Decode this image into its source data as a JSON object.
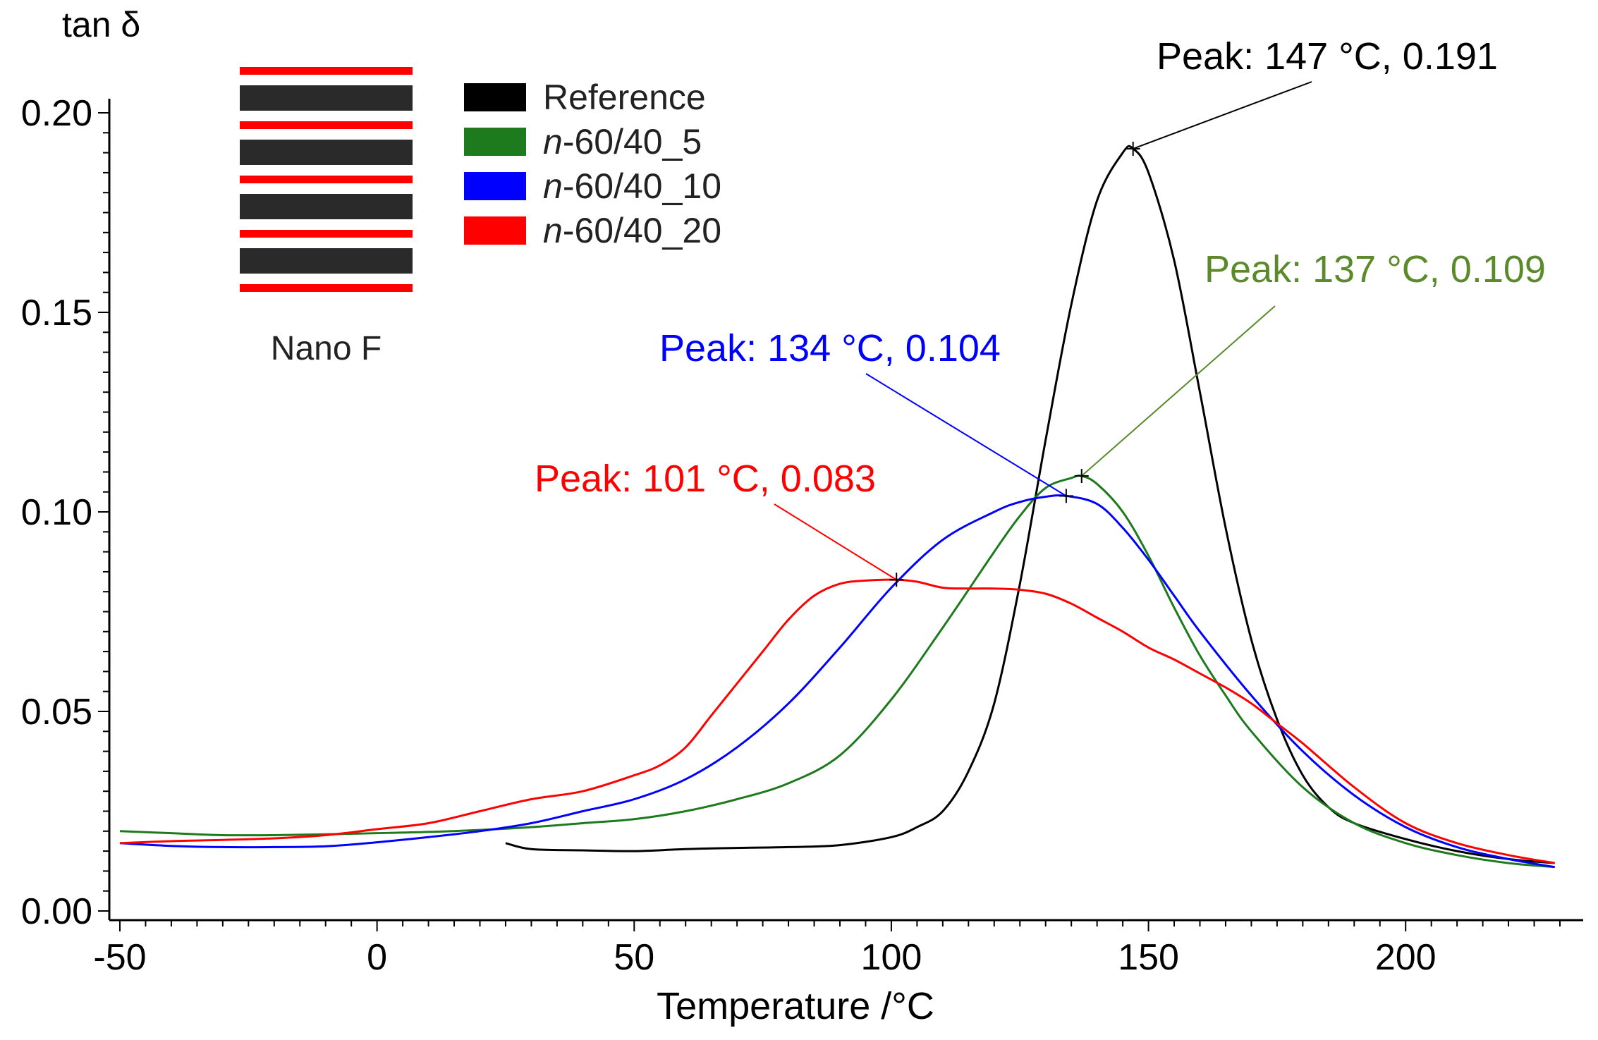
{
  "chart_data": {
    "type": "line",
    "ylabel": "tan δ",
    "xlabel": "Temperature /°C",
    "xlim": [
      -52,
      232
    ],
    "ylim": [
      0.0,
      0.205
    ],
    "x_ticks": [
      -50,
      0,
      50,
      100,
      150,
      200
    ],
    "x_tick_labels": [
      "-50",
      "0",
      "50",
      "100",
      "150",
      "200"
    ],
    "y_ticks": [
      0.0,
      0.05,
      0.1,
      0.15,
      0.2
    ],
    "y_tick_labels": [
      "0.00",
      "0.05",
      "0.10",
      "0.15",
      "0.20"
    ],
    "grid": false,
    "inset_caption": "Nano F",
    "legend_position": "top-left",
    "series": [
      {
        "name": "Reference",
        "italic_prefix": "",
        "label_rest": "Reference",
        "color": "#000000",
        "x": [
          25,
          30,
          40,
          50,
          60,
          70,
          80,
          90,
          100,
          105,
          110,
          115,
          120,
          125,
          130,
          135,
          140,
          145,
          147,
          150,
          155,
          160,
          165,
          170,
          175,
          180,
          185,
          190,
          200,
          210,
          220,
          229
        ],
        "y": [
          0.017,
          0.0155,
          0.0152,
          0.015,
          0.0155,
          0.0158,
          0.016,
          0.0165,
          0.0185,
          0.021,
          0.025,
          0.035,
          0.052,
          0.082,
          0.118,
          0.152,
          0.178,
          0.19,
          0.191,
          0.185,
          0.163,
          0.13,
          0.096,
          0.068,
          0.048,
          0.034,
          0.026,
          0.022,
          0.018,
          0.015,
          0.013,
          0.012
        ]
      },
      {
        "name": "n-60/40_5",
        "italic_prefix": "n",
        "label_rest": "-60/40_5",
        "color": "#1d7a1d",
        "x": [
          -50,
          -40,
          -30,
          -20,
          -10,
          0,
          10,
          20,
          30,
          40,
          50,
          60,
          70,
          80,
          90,
          100,
          110,
          120,
          125,
          130,
          135,
          137,
          140,
          145,
          150,
          155,
          160,
          165,
          170,
          180,
          190,
          200,
          210,
          220,
          229
        ],
        "y": [
          0.02,
          0.0195,
          0.019,
          0.019,
          0.0192,
          0.0195,
          0.0198,
          0.0203,
          0.021,
          0.022,
          0.023,
          0.025,
          0.028,
          0.032,
          0.039,
          0.053,
          0.071,
          0.09,
          0.099,
          0.106,
          0.1085,
          0.109,
          0.107,
          0.1,
          0.089,
          0.076,
          0.064,
          0.054,
          0.045,
          0.031,
          0.022,
          0.017,
          0.014,
          0.012,
          0.011
        ]
      },
      {
        "name": "n-60/40_10",
        "italic_prefix": "n",
        "label_rest": "-60/40_10",
        "color": "#0000ff",
        "x": [
          -50,
          -40,
          -30,
          -20,
          -10,
          0,
          10,
          20,
          30,
          40,
          50,
          60,
          70,
          80,
          90,
          100,
          110,
          120,
          125,
          130,
          134,
          140,
          145,
          150,
          155,
          160,
          170,
          180,
          190,
          200,
          210,
          220,
          229
        ],
        "y": [
          0.017,
          0.0163,
          0.016,
          0.016,
          0.0162,
          0.0172,
          0.0185,
          0.02,
          0.022,
          0.025,
          0.028,
          0.033,
          0.041,
          0.052,
          0.066,
          0.081,
          0.093,
          0.1,
          0.1025,
          0.1038,
          0.104,
          0.102,
          0.096,
          0.088,
          0.079,
          0.07,
          0.054,
          0.04,
          0.029,
          0.021,
          0.016,
          0.013,
          0.011
        ]
      },
      {
        "name": "n-60/40_20",
        "italic_prefix": "n",
        "label_rest": "-60/40_20",
        "color": "#ff0000",
        "x": [
          -50,
          -40,
          -30,
          -20,
          -10,
          0,
          10,
          20,
          30,
          40,
          50,
          55,
          60,
          65,
          70,
          75,
          80,
          85,
          90,
          95,
          101,
          105,
          110,
          115,
          120,
          125,
          130,
          135,
          140,
          145,
          150,
          155,
          160,
          165,
          170,
          175,
          180,
          190,
          200,
          210,
          220,
          229
        ],
        "y": [
          0.017,
          0.0175,
          0.0178,
          0.0182,
          0.019,
          0.0205,
          0.022,
          0.025,
          0.028,
          0.03,
          0.034,
          0.0365,
          0.041,
          0.049,
          0.057,
          0.065,
          0.073,
          0.079,
          0.082,
          0.0828,
          0.083,
          0.0825,
          0.081,
          0.0808,
          0.0808,
          0.0805,
          0.0795,
          0.077,
          0.0735,
          0.07,
          0.066,
          0.063,
          0.0595,
          0.056,
          0.052,
          0.047,
          0.042,
          0.031,
          0.022,
          0.017,
          0.014,
          0.012
        ]
      }
    ],
    "annotations": [
      {
        "text": "Peak: 147 °C, 0.191",
        "x": 147,
        "y": 0.191,
        "color": "#000000"
      },
      {
        "text": "Peak: 137 °C, 0.109",
        "x": 137,
        "y": 0.109,
        "color": "#5a8a2a"
      },
      {
        "text": "Peak: 134 °C, 0.104",
        "x": 134,
        "y": 0.104,
        "color": "#0000ff"
      },
      {
        "text": "Peak: 101 °C, 0.083",
        "x": 101,
        "y": 0.083,
        "color": "#ff0000"
      }
    ],
    "inset_colors": {
      "layer_dark": "#2a2a2a",
      "layer_accent": "#ff0000"
    }
  }
}
